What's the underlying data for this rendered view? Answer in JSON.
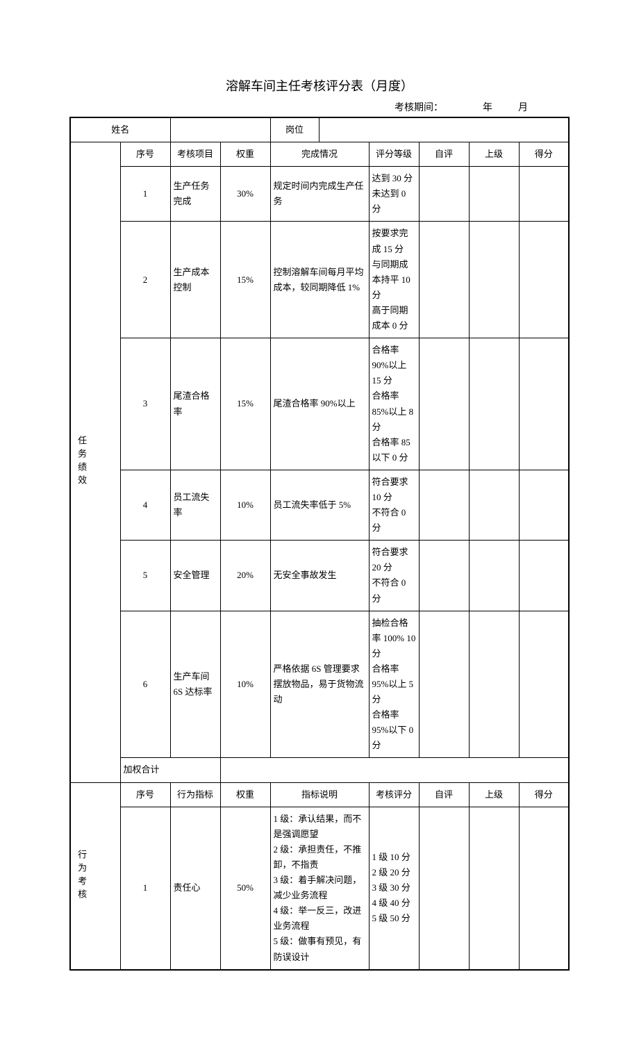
{
  "title": "溶解车间主任考核评分表（月度）",
  "period_label": "考核期间：",
  "year_label": "年",
  "month_label": "月",
  "header": {
    "name_label": "姓名",
    "position_label": "岗位"
  },
  "section1": {
    "category": "任务绩效",
    "cols": {
      "num": "序号",
      "item": "考核项目",
      "weight": "权重",
      "status": "完成情况",
      "grade": "评分等级",
      "self": "自评",
      "superior": "上级",
      "score": "得分"
    },
    "rows": [
      {
        "n": "1",
        "item": "生产任务完成",
        "w": "30%",
        "status": "规定时间内完成生产任务",
        "grade": "达到 30 分\n未达到 0 分"
      },
      {
        "n": "2",
        "item": "生产成本控制",
        "w": "15%",
        "status": "控制溶解车间每月平均成本，较同期降低 1%",
        "grade": "按要求完成 15 分\n与同期成本持平 10 分\n高于同期成本 0 分"
      },
      {
        "n": "3",
        "item": "尾渣合格率",
        "w": "15%",
        "status": "尾渣合格率 90%以上",
        "grade": "合格率 90%以上 15 分\n合格率 85%以上 8 分\n合格率 85 以下 0 分"
      },
      {
        "n": "4",
        "item": "员工流失率",
        "w": "10%",
        "status": "员工流失率低于 5%",
        "grade": "符合要求 10 分\n不符合 0 分"
      },
      {
        "n": "5",
        "item": "安全管理",
        "w": "20%",
        "status": "无安全事故发生",
        "grade": "符合要求 20 分\n不符合 0 分"
      },
      {
        "n": "6",
        "item": "生产车间 6S 达标率",
        "w": "10%",
        "status": "严格依据 6S 管理要求摆放物品，易于货物流动",
        "grade": "抽检合格率 100%  10 分\n合格率 95%以上 5 分\n合格率 95%以下 0 分"
      }
    ],
    "subtotal": "加权合计"
  },
  "section2": {
    "category": "行为考核",
    "cols": {
      "num": "序号",
      "item": "行为指标",
      "weight": "权重",
      "desc": "指标说明",
      "grade": "考核评分",
      "self": "自评",
      "superior": "上级",
      "score": "得分"
    },
    "rows": [
      {
        "n": "1",
        "item": "责任心",
        "w": "50%",
        "desc": "1 级：承认结果，而不是强调愿望\n2 级：承担责任，不推卸，不指责\n3 级：着手解决问题，减少业务流程\n4 级：举一反三，改进业务流程\n5 级：做事有预见，有防误设计",
        "grade": "1 级 10 分\n2 级 20 分\n3 级 30 分\n4 级 40 分\n5 级 50 分"
      }
    ]
  },
  "style": {
    "border_color": "#000000",
    "bg": "#ffffff",
    "title_fontsize": 18,
    "body_fontsize": 13
  }
}
